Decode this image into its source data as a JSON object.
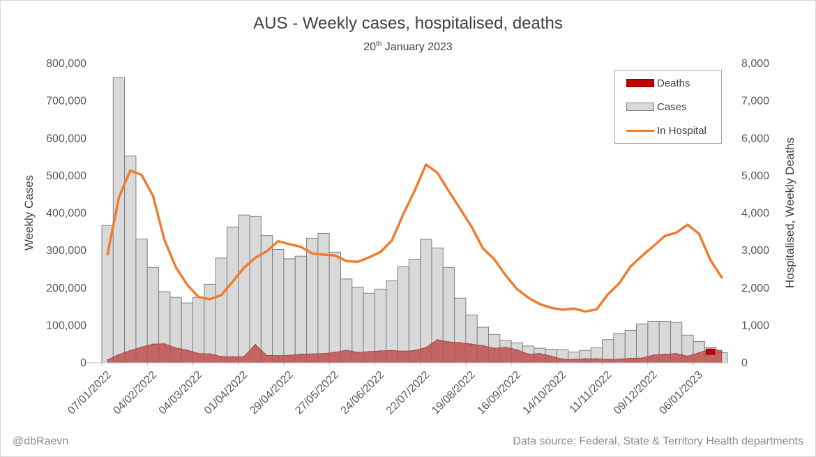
{
  "title": "AUS - Weekly cases, hospitalised, deaths",
  "subtitle_main": "20",
  "subtitle_sup": "th",
  "subtitle_rest": " January 2023",
  "footer": {
    "handle": "@dbRaevn",
    "source": "Data source: Federal, State & Territory Health departments"
  },
  "legend": {
    "deaths": "Deaths",
    "cases": "Cases",
    "hospital": "In Hospital"
  },
  "colors": {
    "cases_fill": "#d9d9d9",
    "cases_border": "#7f7f7f",
    "deaths_fill": "#c0504d",
    "deaths_legend": "#c00000",
    "hospital": "#ed7d31"
  },
  "chart_data": {
    "type": "bar",
    "y_left_label": "Weekly Cases",
    "y_right_label": "Hospitalised, Weekly Deaths",
    "ylim_left": [
      0,
      800000
    ],
    "ylim_right": [
      0,
      8000
    ],
    "y_left_ticks": [
      "0",
      "100,000",
      "200,000",
      "300,000",
      "400,000",
      "500,000",
      "600,000",
      "700,000",
      "800,000"
    ],
    "y_right_ticks": [
      "0",
      "1,000",
      "2,000",
      "3,000",
      "4,000",
      "5,000",
      "6,000",
      "7,000",
      "8,000"
    ],
    "x_tick_labels": [
      {
        "index": 0,
        "label": "07/01/2022"
      },
      {
        "index": 4,
        "label": "04/02/2022"
      },
      {
        "index": 8,
        "label": "04/03/2022"
      },
      {
        "index": 12,
        "label": "01/04/2022"
      },
      {
        "index": 16,
        "label": "29/04/2022"
      },
      {
        "index": 20,
        "label": "27/05/2022"
      },
      {
        "index": 24,
        "label": "24/06/2022"
      },
      {
        "index": 28,
        "label": "22/07/2022"
      },
      {
        "index": 32,
        "label": "19/08/2022"
      },
      {
        "index": 36,
        "label": "16/09/2022"
      },
      {
        "index": 40,
        "label": "14/10/2022"
      },
      {
        "index": 44,
        "label": "11/11/2022"
      },
      {
        "index": 48,
        "label": "09/12/2022"
      },
      {
        "index": 52,
        "label": "06/01/2023"
      }
    ],
    "legend_position": "top-right",
    "series": [
      {
        "name": "Cases",
        "axis": "left",
        "type": "bar",
        "values": [
          367000,
          762000,
          553000,
          331000,
          255000,
          190000,
          175000,
          160000,
          175000,
          210000,
          280000,
          363000,
          395000,
          391000,
          340000,
          303000,
          278000,
          285000,
          333000,
          346000,
          296000,
          224000,
          202000,
          186000,
          197000,
          219000,
          257000,
          277000,
          330000,
          307000,
          255000,
          173000,
          128000,
          95000,
          76000,
          60000,
          53000,
          45000,
          39000,
          36000,
          35000,
          29000,
          33000,
          40000,
          62000,
          79000,
          87000,
          104000,
          111000,
          111000,
          108000,
          74000,
          57000,
          42000,
          27000
        ]
      },
      {
        "name": "Deaths",
        "axis": "right",
        "type": "area",
        "values": [
          80,
          220,
          330,
          420,
          500,
          510,
          400,
          340,
          250,
          240,
          170,
          160,
          170,
          490,
          200,
          190,
          200,
          230,
          240,
          250,
          280,
          340,
          280,
          300,
          320,
          330,
          310,
          330,
          410,
          620,
          560,
          540,
          500,
          460,
          390,
          420,
          350,
          230,
          250,
          180,
          100,
          90,
          110,
          110,
          90,
          100,
          120,
          130,
          210,
          230,
          250,
          180,
          270,
          370,
          330
        ]
      },
      {
        "name": "In Hospital",
        "axis": "right",
        "type": "line",
        "values": [
          2900,
          4420,
          5140,
          5020,
          4460,
          3290,
          2560,
          2090,
          1760,
          1700,
          1810,
          2170,
          2540,
          2810,
          2980,
          3250,
          3170,
          3100,
          2920,
          2890,
          2870,
          2720,
          2700,
          2820,
          2960,
          3270,
          3970,
          4600,
          5300,
          5080,
          4590,
          4120,
          3640,
          3060,
          2770,
          2340,
          1970,
          1740,
          1570,
          1470,
          1420,
          1450,
          1370,
          1430,
          1830,
          2130,
          2580,
          2860,
          3120,
          3390,
          3480,
          3690,
          3450,
          2750,
          2280
        ]
      }
    ]
  }
}
